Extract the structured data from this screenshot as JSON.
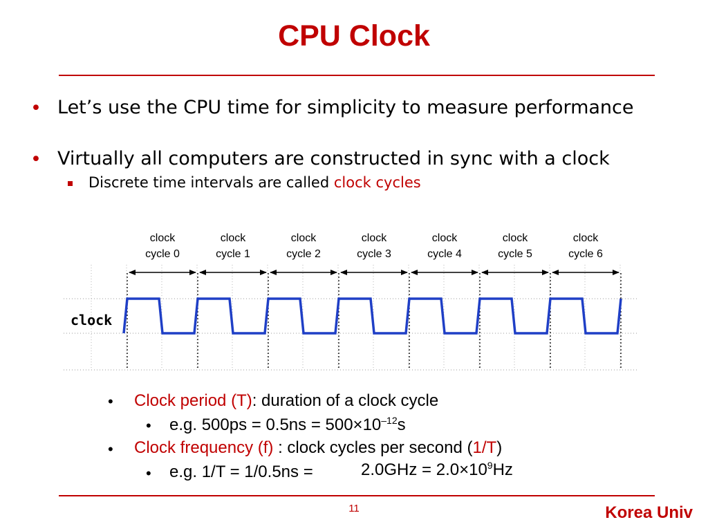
{
  "slide": {
    "title": "CPU Clock",
    "bullets": [
      "Let’s use the CPU time for simplicity to measure performance",
      "Virtually all computers are constructed in sync with a clock"
    ],
    "sub_bullet": {
      "text": "Discrete time intervals are called ",
      "highlight": "clock cycles"
    },
    "diagram": {
      "signal_label": "clock",
      "cycle_labels": [
        [
          "clock",
          "cycle 0"
        ],
        [
          "clock",
          "cycle 1"
        ],
        [
          "clock",
          "cycle 2"
        ],
        [
          "clock",
          "cycle 3"
        ],
        [
          "clock",
          "cycle 4"
        ],
        [
          "clock",
          "cycle 5"
        ],
        [
          "clock",
          "cycle 6"
        ]
      ],
      "signal_color": "#1f3fc6"
    },
    "notes": {
      "period_term": "Clock period (T)",
      "period_desc": ": duration of a clock cycle",
      "period_example_a": "e.g. 500ps = 0.5ns = 500",
      "period_example_times": "×",
      "period_example_b": "10",
      "period_example_exp": "–12",
      "period_example_c": "s",
      "freq_term": "Clock frequency (f)",
      "freq_desc": " : clock cycles per second (",
      "freq_highlight": "1/T",
      "freq_close": ")",
      "freq_example_a": "e.g. 1/T = 1/0.5ns = ",
      "freq_example_b": "2.0GHz = 2.0",
      "freq_example_times": "×",
      "freq_example_c": "10",
      "freq_example_exp": "9",
      "freq_example_d": "Hz"
    },
    "page_number": "11",
    "brand": "Korea Univ",
    "accent_color": "#c00000"
  }
}
